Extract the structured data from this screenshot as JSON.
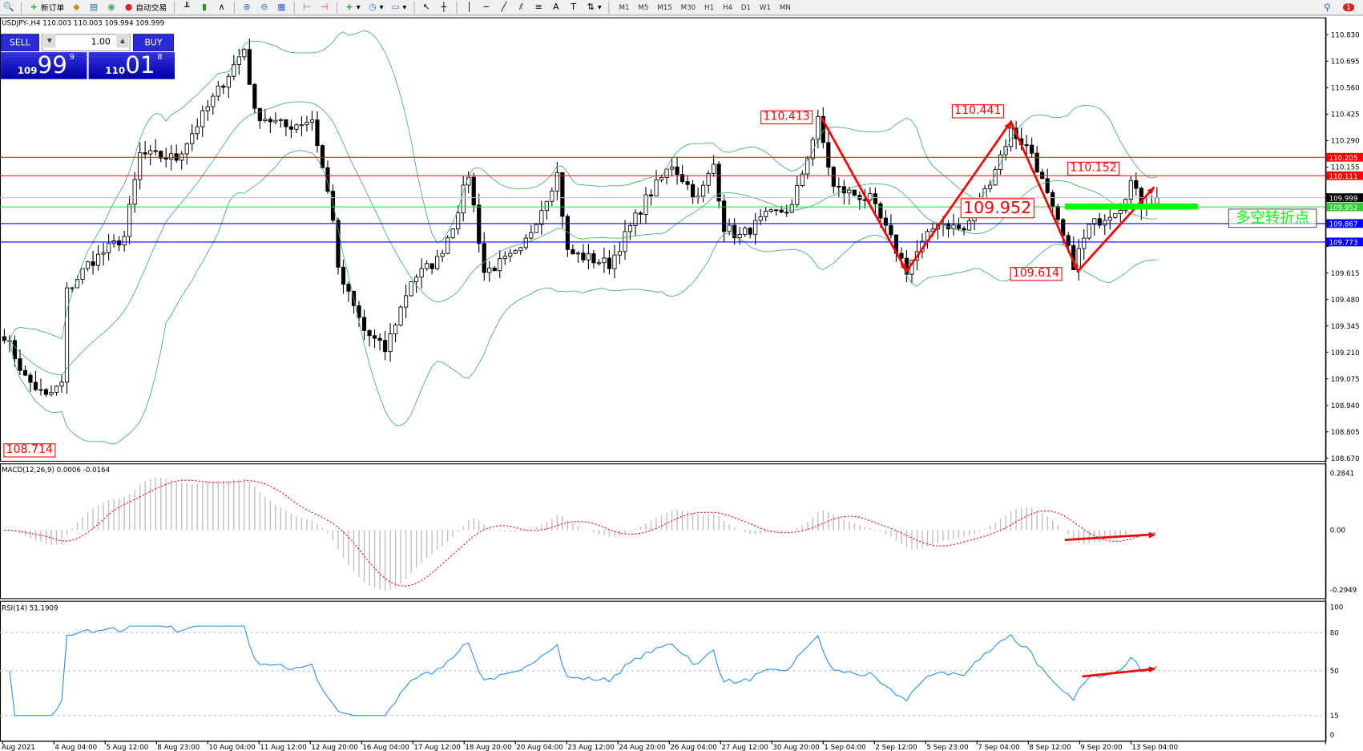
{
  "toolbar": {
    "new_order": "新订单",
    "auto_trading": "自动交易",
    "timeframes": [
      "M1",
      "M5",
      "M15",
      "M30",
      "H1",
      "H4",
      "D1",
      "W1",
      "MN"
    ],
    "notification_count": "1"
  },
  "chart": {
    "title": "USDJPY-,H4  110.003 110.003 109.994 109.999",
    "price_ticks": [
      "110.830",
      "110.695",
      "110.560",
      "110.425",
      "110.290",
      "110.155",
      "110.020",
      "109.885",
      "109.750",
      "109.615",
      "109.480",
      "109.345",
      "109.210",
      "109.075",
      "108.940",
      "108.805",
      "108.670"
    ],
    "time_labels": [
      "Aug 2021",
      "4 Aug 04:00",
      "5 Aug 12:00",
      "8 Aug 23:00",
      "10 Aug 04:00",
      "11 Aug 12:00",
      "12 Aug 20:00",
      "16 Aug 04:00",
      "17 Aug 12:00",
      "18 Aug 20:00",
      "20 Aug 04:00",
      "23 Aug 12:00",
      "24 Aug 20:00",
      "26 Aug 04:00",
      "27 Aug 12:00",
      "30 Aug 20:00",
      "1 Sep 04:00",
      "2 Sep 12:00",
      "5 Sep 23:00",
      "7 Sep 04:00",
      "8 Sep 12:00",
      "9 Sep 20:00",
      "13 Sep 04:00"
    ],
    "hlines": [
      {
        "price": 110.205,
        "label": "110.205",
        "color": "#ff0000"
      },
      {
        "price": 110.111,
        "label": "110.111",
        "color": "#ff0000"
      },
      {
        "price": 109.999,
        "label": "109.999",
        "color": "#c0c0c0",
        "tag": "#000000"
      },
      {
        "price": 109.952,
        "label": "109.952",
        "color": "#32cd32"
      },
      {
        "price": 109.867,
        "label": "109.867",
        "color": "#0000ff"
      },
      {
        "price": 109.773,
        "label": "109.773",
        "color": "#0000ff"
      }
    ],
    "annotations": [
      "110.413",
      "110.441",
      "110.152",
      "109.952",
      "109.614",
      "108.714"
    ],
    "reversal_text": "多空转折点",
    "price_path": [
      [
        0,
        109.3
      ],
      [
        4,
        109.08
      ],
      [
        8,
        108.98
      ],
      [
        11,
        109.05
      ],
      [
        12,
        109.52
      ],
      [
        16,
        109.66
      ],
      [
        19,
        109.72
      ],
      [
        23,
        109.8
      ],
      [
        26,
        110.22
      ],
      [
        33,
        110.2
      ],
      [
        39,
        110.46
      ],
      [
        46,
        110.76
      ],
      [
        48,
        110.43
      ],
      [
        54,
        110.36
      ],
      [
        59,
        110.4
      ],
      [
        63,
        109.9
      ],
      [
        64,
        109.62
      ],
      [
        69,
        109.32
      ],
      [
        73,
        109.22
      ],
      [
        78,
        109.58
      ],
      [
        83,
        109.68
      ],
      [
        86,
        109.86
      ],
      [
        89,
        110.12
      ],
      [
        92,
        109.62
      ],
      [
        99,
        109.72
      ],
      [
        106,
        110.12
      ],
      [
        108,
        109.72
      ],
      [
        116,
        109.66
      ],
      [
        123,
        109.99
      ],
      [
        128,
        110.17
      ],
      [
        133,
        109.99
      ],
      [
        136,
        110.17
      ],
      [
        138,
        109.85
      ],
      [
        141,
        109.8
      ],
      [
        146,
        109.9
      ],
      [
        151,
        109.95
      ],
      [
        156,
        110.39
      ],
      [
        159,
        110.05
      ],
      [
        166,
        109.99
      ],
      [
        173,
        109.63
      ],
      [
        174,
        109.68
      ],
      [
        179,
        109.88
      ],
      [
        184,
        109.83
      ],
      [
        188,
        110.03
      ],
      [
        193,
        110.34
      ],
      [
        197,
        110.23
      ],
      [
        201,
        109.93
      ],
      [
        205,
        109.66
      ],
      [
        208,
        109.85
      ],
      [
        214,
        109.96
      ],
      [
        216,
        110.08
      ],
      [
        218,
        109.96
      ],
      [
        221,
        109.999
      ]
    ],
    "bands_color": "#3cb371",
    "bull_color": "#ffffff",
    "bear_color": "#000000"
  },
  "trade_panel": {
    "sell_label": "SELL",
    "buy_label": "BUY",
    "lot": "1.00",
    "sell_big": "109",
    "sell_main": "99",
    "sell_small": "9",
    "buy_big": "110",
    "buy_main": "01",
    "buy_small": "8"
  },
  "macd": {
    "title": "MACD(12,26,9) 0.0006 -0.0164",
    "ticks": [
      "0.2841",
      "0.00",
      "-0.2949"
    ],
    "signal_color": "#ff0000",
    "hist_color": "#c0c0c0"
  },
  "rsi": {
    "title": "RSI(14) 51.1909",
    "ticks": [
      "100",
      "80",
      "50",
      "15",
      "0"
    ],
    "levels": [
      80,
      50,
      15
    ],
    "color": "#1e90ff"
  }
}
